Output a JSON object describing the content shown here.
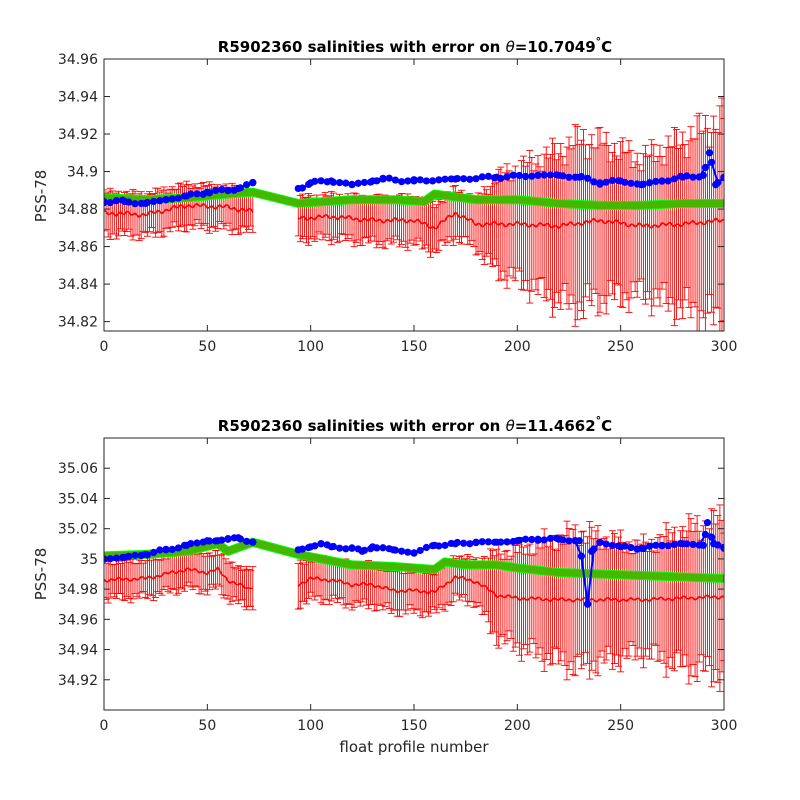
{
  "figure": {
    "xlabel": "float profile number"
  },
  "colors": {
    "error": "#ff0000",
    "mapped": "#00ff00",
    "float": "#0000ff",
    "overlap": "#807a00"
  },
  "chart_data": [
    {
      "type": "line",
      "title_prefix": "R5902360 salinities with error on ",
      "theta_symbol": "θ",
      "title_suffix": "=10.7049",
      "degree": "°",
      "title_unit": "C",
      "ylabel": "PSS-78",
      "xlim": [
        0,
        300
      ],
      "ylim": [
        34.815,
        34.96
      ],
      "xticks": [
        0,
        50,
        100,
        150,
        200,
        250,
        300
      ],
      "yticks": [
        "34.82",
        "34.84",
        "34.86",
        "34.88",
        "34.9",
        "34.92",
        "34.94",
        "34.96"
      ],
      "series": [
        {
          "role": "float",
          "x": [
            0,
            10,
            20,
            30,
            40,
            50,
            60,
            65,
            72,
            94,
            100,
            110,
            120,
            130,
            135,
            150,
            170,
            190,
            210,
            220,
            230,
            240,
            250,
            260,
            270,
            280,
            290,
            293,
            296,
            300
          ],
          "y": [
            34.884,
            34.884,
            34.883,
            34.885,
            34.887,
            34.889,
            34.89,
            34.891,
            34.894,
            34.891,
            34.894,
            34.895,
            34.893,
            34.895,
            34.896,
            34.895,
            34.896,
            34.897,
            34.898,
            34.898,
            34.897,
            34.894,
            34.895,
            34.893,
            34.895,
            34.897,
            34.898,
            34.91,
            34.893,
            34.897
          ]
        },
        {
          "role": "mapped",
          "x": [
            0,
            20,
            40,
            60,
            72,
            94,
            120,
            140,
            155,
            160,
            180,
            200,
            220,
            240,
            260,
            280,
            300
          ],
          "y": [
            34.886,
            34.885,
            34.886,
            34.888,
            34.889,
            34.883,
            34.885,
            34.885,
            34.884,
            34.888,
            34.885,
            34.885,
            34.883,
            34.882,
            34.882,
            34.883,
            34.883
          ]
        },
        {
          "role": "error_center",
          "x": [
            0,
            20,
            40,
            60,
            70,
            94,
            110,
            130,
            150,
            160,
            170,
            180,
            200,
            220,
            240,
            260,
            280,
            300
          ],
          "y": [
            34.878,
            34.877,
            34.882,
            34.881,
            34.879,
            34.875,
            34.876,
            34.874,
            34.874,
            34.87,
            34.878,
            34.872,
            34.872,
            34.871,
            34.874,
            34.871,
            34.872,
            34.874
          ]
        },
        {
          "role": "error_halfwidth",
          "x": [
            0,
            70,
            94,
            180,
            190,
            230,
            260,
            280,
            300
          ],
          "y": [
            0.011,
            0.011,
            0.011,
            0.013,
            0.025,
            0.045,
            0.036,
            0.045,
            0.055
          ]
        }
      ]
    },
    {
      "type": "line",
      "title_prefix": "R5902360 salinities with error on ",
      "theta_symbol": "θ",
      "title_suffix": "=11.4662",
      "degree": "°",
      "title_unit": "C",
      "ylabel": "PSS-78",
      "xlim": [
        0,
        300
      ],
      "ylim": [
        34.9,
        35.08
      ],
      "xticks": [
        0,
        50,
        100,
        150,
        200,
        250,
        300
      ],
      "yticks": [
        "34.92",
        "34.94",
        "34.96",
        "34.98",
        "35",
        "35.02",
        "35.04",
        "35.06"
      ],
      "series": [
        {
          "role": "float",
          "x": [
            0,
            10,
            20,
            30,
            40,
            50,
            55,
            60,
            65,
            72,
            94,
            100,
            105,
            110,
            120,
            125,
            130,
            140,
            150,
            160,
            170,
            180,
            190,
            200,
            210,
            220,
            230,
            234,
            236,
            240,
            250,
            260,
            270,
            280,
            290,
            292,
            295,
            300
          ],
          "y": [
            35.0,
            35.001,
            35.003,
            35.006,
            35.009,
            35.012,
            35.012,
            35.013,
            35.014,
            35.011,
            35.006,
            35.008,
            35.01,
            35.008,
            35.007,
            35.005,
            35.008,
            35.006,
            35.004,
            35.009,
            35.01,
            35.011,
            35.011,
            35.012,
            35.013,
            35.013,
            35.012,
            34.97,
            35.005,
            35.011,
            35.008,
            35.007,
            35.009,
            35.01,
            35.009,
            35.024,
            35.01,
            35.007
          ]
        },
        {
          "role": "mapped",
          "x": [
            0,
            20,
            40,
            55,
            60,
            72,
            94,
            120,
            140,
            160,
            165,
            175,
            190,
            200,
            220,
            240,
            260,
            280,
            300
          ],
          "y": [
            35.002,
            35.003,
            35.005,
            35.01,
            35.005,
            35.011,
            35.003,
            34.996,
            34.995,
            34.993,
            34.998,
            34.996,
            34.996,
            34.994,
            34.991,
            34.99,
            34.989,
            34.988,
            34.987
          ]
        },
        {
          "role": "error_center",
          "x": [
            0,
            20,
            40,
            50,
            55,
            60,
            70,
            72,
            94,
            100,
            110,
            120,
            130,
            140,
            150,
            160,
            170,
            180,
            190,
            200,
            220,
            240,
            260,
            280,
            300
          ],
          "y": [
            34.986,
            34.987,
            34.993,
            34.991,
            34.993,
            34.986,
            34.98,
            34.982,
            34.983,
            34.987,
            34.986,
            34.983,
            34.983,
            34.979,
            34.979,
            34.978,
            34.988,
            34.985,
            34.976,
            34.974,
            34.973,
            34.973,
            34.973,
            34.974,
            34.975
          ]
        },
        {
          "role": "error_halfwidth",
          "x": [
            0,
            70,
            94,
            180,
            190,
            230,
            260,
            280,
            300
          ],
          "y": [
            0.012,
            0.012,
            0.013,
            0.014,
            0.028,
            0.045,
            0.035,
            0.045,
            0.052
          ]
        }
      ]
    }
  ]
}
